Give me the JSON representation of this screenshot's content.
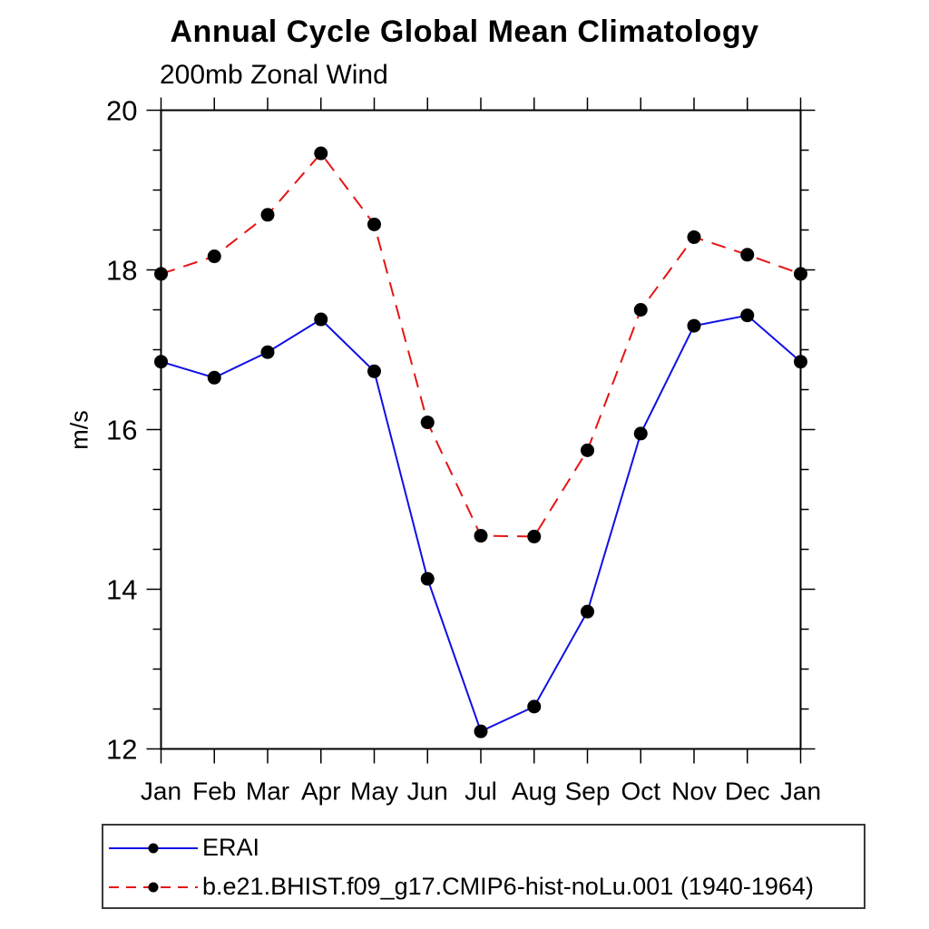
{
  "chart_data": {
    "type": "line",
    "title": "Annual Cycle Global Mean Climatology",
    "subtitle": "200mb Zonal Wind",
    "ylabel": "m/s",
    "x_labels": [
      "Jan",
      "Feb",
      "Mar",
      "Apr",
      "May",
      "Jun",
      "Jul",
      "Aug",
      "Sep",
      "Oct",
      "Nov",
      "Dec",
      "Jan"
    ],
    "ylim": [
      12,
      20
    ],
    "y_major_step": 2,
    "y_minor_step": 0.5,
    "y_major_tick_labels": [
      "12",
      "14",
      "16",
      "18",
      "20"
    ],
    "grid": false,
    "legend_position": "bottom-left-boxed",
    "frame_color": "#000000",
    "marker_color": "#000000",
    "series": [
      {
        "name": "ERAI",
        "color": "#0f0fe6",
        "line_style": "solid",
        "marker": "circle",
        "values": [
          16.85,
          16.65,
          16.97,
          17.38,
          16.73,
          14.13,
          12.22,
          12.53,
          13.72,
          15.95,
          17.3,
          17.43,
          16.85
        ]
      },
      {
        "name": "b.e21.BHIST.f09_g17.CMIP6-hist-noLu.001 (1940-1964)",
        "color": "#e61414",
        "line_style": "dashed",
        "marker": "circle",
        "values": [
          17.95,
          18.17,
          18.69,
          19.46,
          18.57,
          16.09,
          14.67,
          14.66,
          15.74,
          17.5,
          18.41,
          18.19,
          17.95
        ]
      }
    ]
  }
}
